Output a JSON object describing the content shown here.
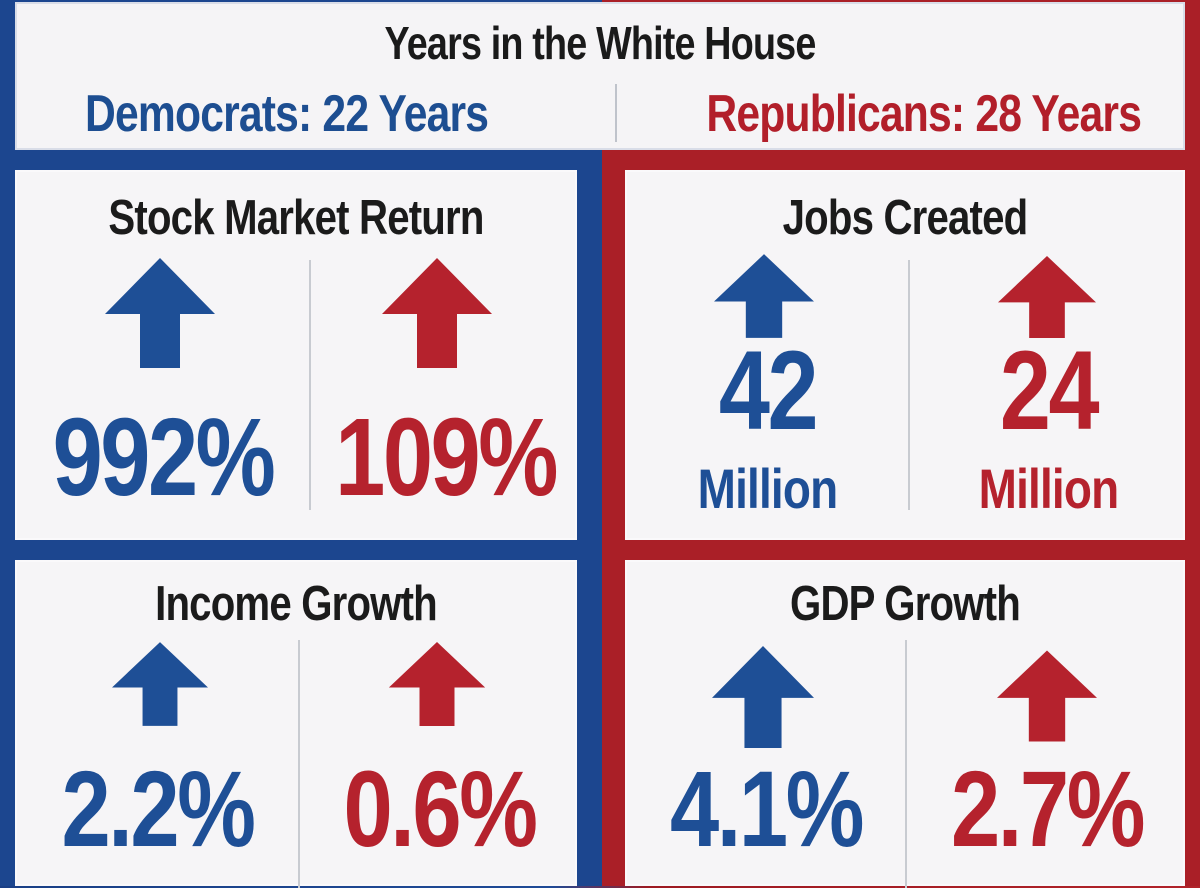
{
  "header": {
    "title": "Years in the White House",
    "democrats": "Democrats: 22 Years",
    "republicans": "Republicans: 28 Years"
  },
  "colors": {
    "democrat": "#1e4f96",
    "republican": "#b5222d"
  },
  "panels": [
    {
      "title": "Stock Market Return",
      "dem_value": "992%",
      "rep_value": "109%"
    },
    {
      "title": "Jobs Created",
      "dem_value": "42",
      "rep_value": "24",
      "dem_unit": "Million",
      "rep_unit": "Million"
    },
    {
      "title": "Income Growth",
      "dem_value": "2.2%",
      "rep_value": "0.6%"
    },
    {
      "title": "GDP Growth",
      "dem_value": "4.1%",
      "rep_value": "2.7%"
    }
  ],
  "icons": {
    "democrat_arrow": "arrow-up-icon",
    "republican_arrow": "arrow-up-icon"
  }
}
